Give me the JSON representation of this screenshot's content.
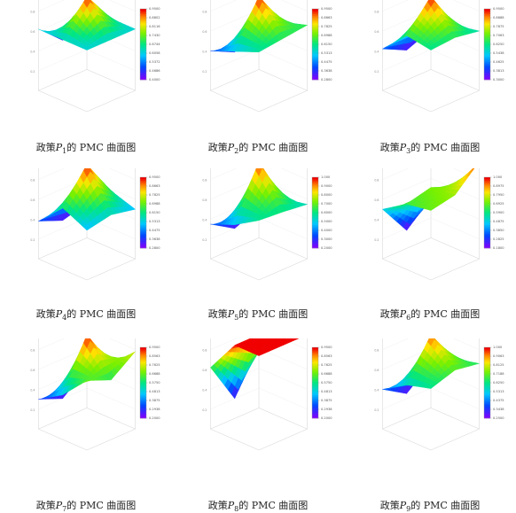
{
  "charts": [
    {
      "title_pre": "政策",
      "title_var": "P",
      "title_sub": "1",
      "title_post": "的 PMC 曲面图",
      "chart_data": {
        "type": "surface",
        "matrix": [
          [
            0.62,
            0.62,
            0.62
          ],
          [
            0.62,
            0.95,
            0.62
          ],
          [
            0.62,
            0.4,
            0.62
          ]
        ],
        "colorbar": {
          "min": 0.4,
          "max": 0.95,
          "ticks": [
            "0.4000",
            "0.4686",
            "0.5372",
            "0.6058",
            "0.6744",
            "0.7430",
            "0.8116",
            "0.8802",
            "0.9500"
          ]
        }
      }
    },
    {
      "title_pre": "政策",
      "title_var": "P",
      "title_sub": "2",
      "title_post": "的 PMC 曲面图",
      "chart_data": {
        "type": "surface",
        "matrix": [
          [
            0.6,
            0.63,
            0.66
          ],
          [
            0.5,
            0.95,
            0.58
          ],
          [
            0.4,
            0.28,
            0.45
          ]
        ],
        "colorbar": {
          "min": 0.28,
          "max": 0.95,
          "ticks": [
            "0.2800",
            "0.3638",
            "0.4475",
            "0.5313",
            "0.6150",
            "0.6988",
            "0.7825",
            "0.8663",
            "0.9500"
          ]
        }
      }
    },
    {
      "title_pre": "政策",
      "title_var": "P",
      "title_sub": "3",
      "title_post": "的 PMC 曲面图",
      "chart_data": {
        "type": "surface",
        "matrix": [
          [
            0.62,
            0.64,
            0.6
          ],
          [
            0.66,
            0.95,
            0.55
          ],
          [
            0.42,
            0.3,
            0.4
          ]
        ],
        "colorbar": {
          "min": 0.3,
          "max": 0.95,
          "ticks": [
            "0.3000",
            "0.3813",
            "0.4625",
            "0.5438",
            "0.6250",
            "0.7063",
            "0.7875",
            "0.8688",
            "0.9500"
          ]
        }
      }
    },
    {
      "title_pre": "政策",
      "title_var": "P",
      "title_sub": "4",
      "title_post": "的 PMC 曲面图",
      "chart_data": {
        "type": "surface",
        "matrix": [
          [
            0.5,
            0.55,
            0.5
          ],
          [
            0.62,
            0.95,
            0.58
          ],
          [
            0.38,
            0.28,
            0.35
          ]
        ],
        "colorbar": {
          "min": 0.28,
          "max": 0.95,
          "ticks": [
            "0.2800",
            "0.3638",
            "0.4475",
            "0.5313",
            "0.6150",
            "0.6988",
            "0.7825",
            "0.8663",
            "0.9500"
          ]
        }
      }
    },
    {
      "title_pre": "政策",
      "title_var": "P",
      "title_sub": "5",
      "title_post": "的 PMC 曲面图",
      "chart_data": {
        "type": "surface",
        "matrix": [
          [
            0.6,
            0.58,
            0.55
          ],
          [
            0.45,
            0.98,
            0.5
          ],
          [
            0.35,
            0.2,
            0.3
          ]
        ],
        "colorbar": {
          "min": 0.2,
          "max": 1.0,
          "ticks": [
            "0.2000",
            "0.3000",
            "0.4000",
            "0.5000",
            "0.6000",
            "0.7000",
            "0.8000",
            "0.9000",
            "1.000"
          ]
        }
      }
    },
    {
      "title_pre": "政策",
      "title_var": "P",
      "title_sub": "6",
      "title_post": "的 PMC 曲面图",
      "chart_data": {
        "type": "surface",
        "matrix": [
          [
            0.7,
            0.75,
            0.98
          ],
          [
            0.66,
            0.72,
            0.62
          ],
          [
            0.5,
            0.18,
            0.4
          ]
        ],
        "colorbar": {
          "min": 0.18,
          "max": 1.0,
          "ticks": [
            "0.1800",
            "0.2825",
            "0.3850",
            "0.4875",
            "0.5900",
            "0.6925",
            "0.7950",
            "0.8975",
            "1.000"
          ]
        }
      }
    },
    {
      "title_pre": "政策",
      "title_var": "P",
      "title_sub": "7",
      "title_post": "的 PMC 曲面图",
      "chart_data": {
        "type": "surface",
        "matrix": [
          [
            0.7,
            0.6,
            0.78
          ],
          [
            0.45,
            0.95,
            0.55
          ],
          [
            0.3,
            0.2,
            0.4
          ]
        ],
        "colorbar": {
          "min": 0.2,
          "max": 0.95,
          "ticks": [
            "0.2000",
            "0.2938",
            "0.3875",
            "0.4813",
            "0.5750",
            "0.6688",
            "0.7625",
            "0.8563",
            "0.9500"
          ]
        }
      }
    },
    {
      "title_pre": "政策",
      "title_var": "P",
      "title_sub": "8",
      "title_post": "的 PMC 曲面图",
      "chart_data": {
        "type": "surface",
        "matrix": [
          [
            0.95,
            0.95,
            0.95
          ],
          [
            0.95,
            0.95,
            0.95
          ],
          [
            0.62,
            0.2,
            0.62
          ]
        ],
        "colorbar": {
          "min": 0.2,
          "max": 0.95,
          "ticks": [
            "0.2000",
            "0.2938",
            "0.3875",
            "0.4813",
            "0.5750",
            "0.6688",
            "0.7625",
            "0.8563",
            "0.9500"
          ]
        }
      }
    },
    {
      "title_pre": "政策",
      "title_var": "P",
      "title_sub": "9",
      "title_post": "的 PMC 曲面图",
      "chart_data": {
        "type": "surface",
        "matrix": [
          [
            0.62,
            0.7,
            0.66
          ],
          [
            0.55,
            0.95,
            0.6
          ],
          [
            0.4,
            0.25,
            0.45
          ]
        ],
        "colorbar": {
          "min": 0.25,
          "max": 1.0,
          "ticks": [
            "0.2500",
            "0.3438",
            "0.4375",
            "0.5313",
            "0.6250",
            "0.7188",
            "0.8125",
            "0.9063",
            "1.000"
          ]
        }
      }
    }
  ]
}
